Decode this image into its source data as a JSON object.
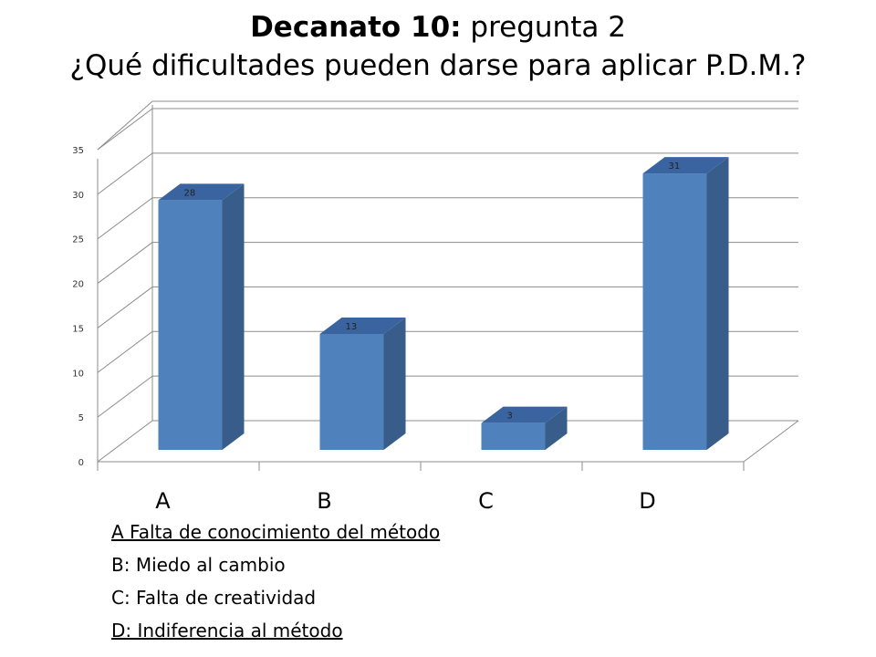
{
  "title": {
    "prefix": "Decanato 10:",
    "suffix": " pregunta 2",
    "question": "¿Qué dificultades pueden darse para aplicar P.D.M.?"
  },
  "chart_data": {
    "type": "bar",
    "categories": [
      "A",
      "B",
      "C",
      "D"
    ],
    "values": [
      28,
      13,
      3,
      31
    ],
    "data_labels": [
      "28",
      "13",
      "3",
      "31"
    ],
    "ylim": [
      0,
      35
    ],
    "yticks": [
      "0",
      "5",
      "10",
      "15",
      "20",
      "25",
      "30",
      "35"
    ],
    "grid": true,
    "three_d": true,
    "colors": {
      "front": "#4f81bd",
      "side": "#385d8a",
      "top": "#3a64a0",
      "grid": "#8c8c8c"
    }
  },
  "legend": [
    {
      "text": "A Falta de conocimiento del método",
      "underline": true
    },
    {
      "text": "B: Miedo al cambio",
      "underline": false
    },
    {
      "text": "C: Falta de creatividad",
      "underline": false
    },
    {
      "text": "D: Indiferencia  al método",
      "underline": true
    }
  ]
}
